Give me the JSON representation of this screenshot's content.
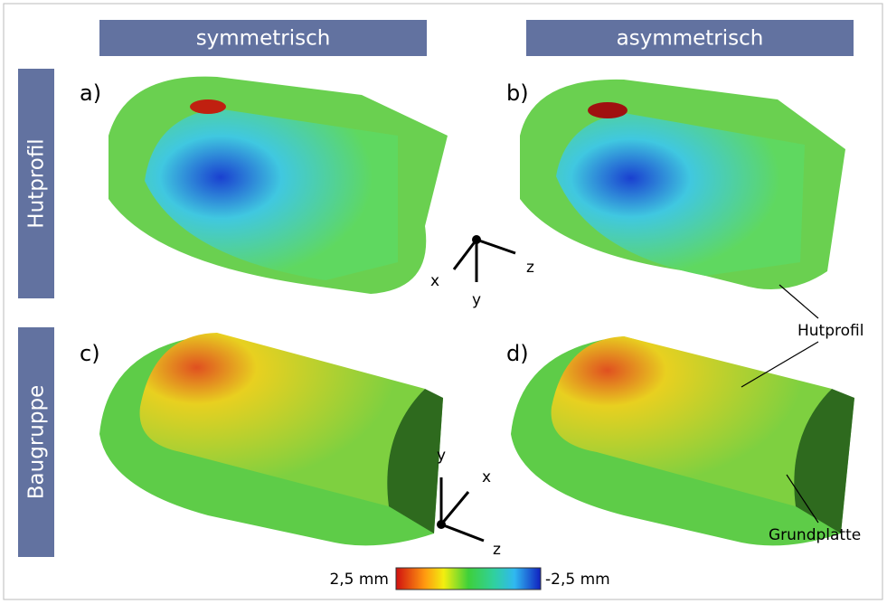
{
  "columns": [
    "symmetrisch",
    "asymmetrisch"
  ],
  "rows": [
    "Hutprofil",
    "Baugruppe"
  ],
  "panels": [
    "a)",
    "b)",
    "c)",
    "d)"
  ],
  "axes_top": {
    "x": "x",
    "y": "y",
    "z": "z"
  },
  "axes_bottom": {
    "x": "x",
    "y": "y",
    "z": "z"
  },
  "annotations": [
    "Hutprofil",
    "Grundplatte"
  ],
  "colorbar": {
    "left_label": "2,5 mm",
    "right_label": "-2,5 mm"
  }
}
